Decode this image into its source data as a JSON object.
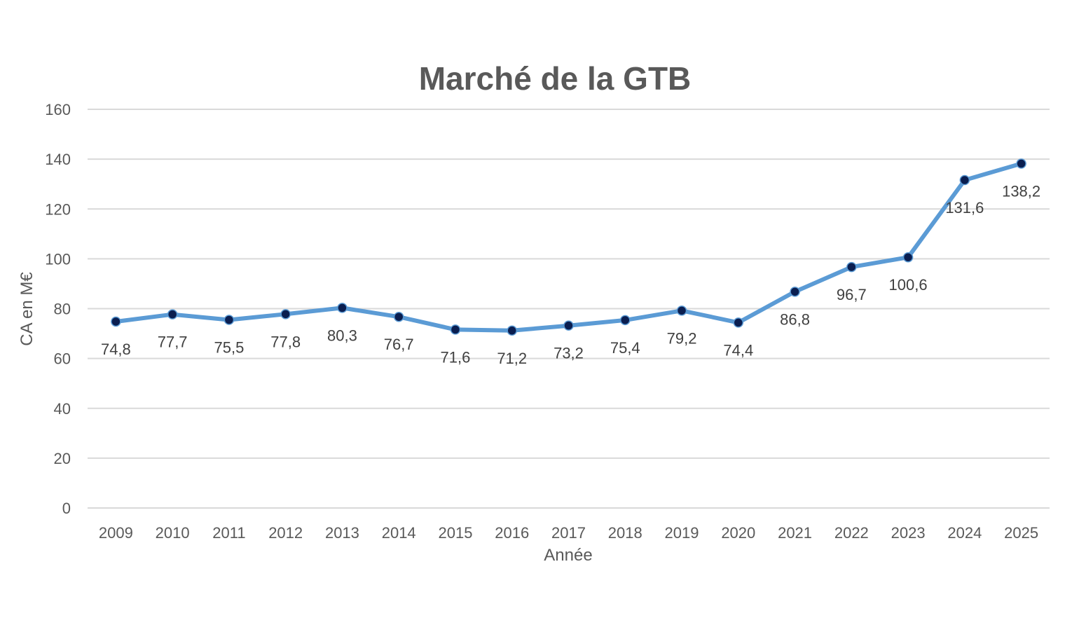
{
  "chart_data": {
    "type": "line",
    "title": "Marché de la GTB",
    "xlabel": "Année",
    "ylabel": "CA en M€",
    "categories": [
      "2009",
      "2010",
      "2011",
      "2012",
      "2013",
      "2014",
      "2015",
      "2016",
      "2017",
      "2018",
      "2019",
      "2020",
      "2021",
      "2022",
      "2023",
      "2024",
      "2025"
    ],
    "series": [
      {
        "values": [
          74.8,
          77.7,
          75.5,
          77.8,
          80.3,
          76.7,
          71.6,
          71.2,
          73.2,
          75.4,
          79.2,
          74.4,
          86.8,
          96.7,
          100.6,
          131.6,
          138.2
        ]
      }
    ],
    "data_labels": [
      "74,8",
      "77,7",
      "75,5",
      "77,8",
      "80,3",
      "76,7",
      "71,6",
      "71,2",
      "73,2",
      "75,4",
      "79,2",
      "74,4",
      "86,8",
      "96,7",
      "100,6",
      "131,6",
      "138,2"
    ],
    "ylim": [
      0,
      160
    ],
    "yticks": [
      "0",
      "20",
      "40",
      "60",
      "80",
      "100",
      "120",
      "140",
      "160"
    ],
    "grid": true,
    "legend": "none",
    "colors": {
      "line": "#5b9bd5",
      "marker": "#0a1e50",
      "grid": "#d9d9d9"
    }
  }
}
